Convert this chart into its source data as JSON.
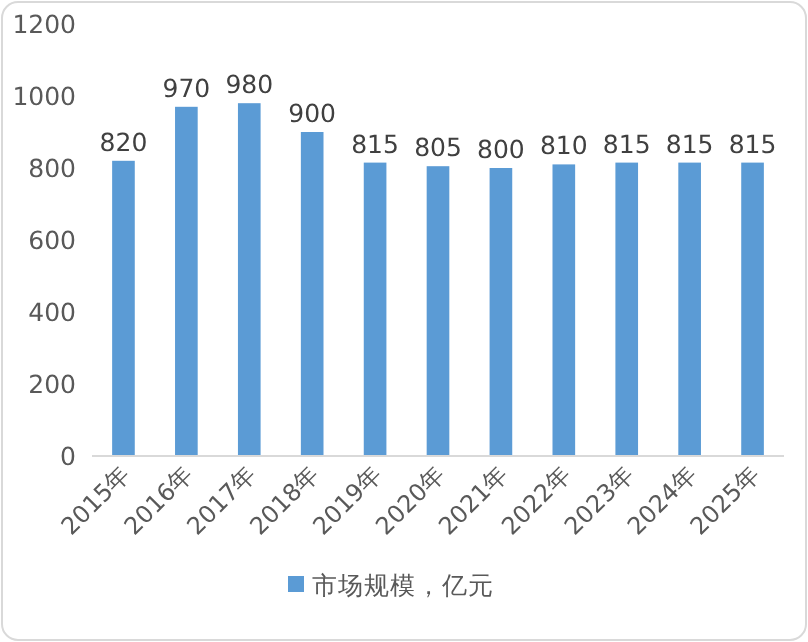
{
  "chart_data": {
    "type": "bar",
    "categories": [
      "2015年",
      "2016年",
      "2017年",
      "2018年",
      "2019年",
      "2020年",
      "2021年",
      "2022年",
      "2023年",
      "2024年",
      "2025年"
    ],
    "series": [
      {
        "name": "市场规模，亿元",
        "color": "#5b9bd5",
        "values": [
          820,
          970,
          980,
          900,
          815,
          805,
          800,
          810,
          815,
          815,
          815
        ]
      }
    ],
    "ylim": [
      0,
      1200
    ],
    "yticks": [
      0,
      200,
      400,
      600,
      800,
      1000,
      1200
    ],
    "data_labels": true,
    "legend": "bottom"
  }
}
